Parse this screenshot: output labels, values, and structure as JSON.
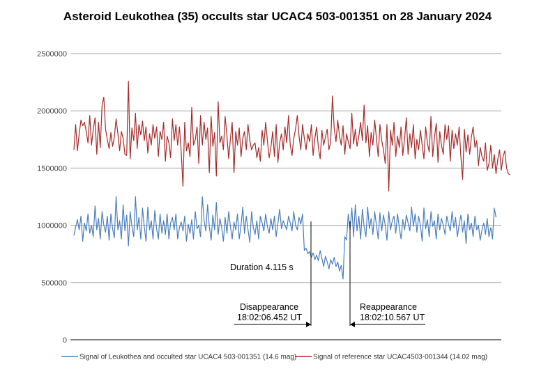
{
  "chart_data": {
    "type": "line",
    "title": "Asteroid Leukothea (35) occults star UCAC4 503-001351 on 28 January 2024",
    "xlabel": "",
    "ylabel": "",
    "ylim": [
      0,
      2500000
    ],
    "yticks": [
      0,
      500000,
      1000000,
      1500000,
      2000000,
      2500000
    ],
    "ytick_labels": [
      "0",
      "500000",
      "1000000",
      "1500000",
      "2000000",
      "2500000"
    ],
    "grid": true,
    "legend_position": "bottom",
    "x_count": 244,
    "series": [
      {
        "name": "Signal of Leukothea and occulted star UCAC4 503-001351 (14.6 mag)",
        "color": "#4a7ebb",
        "values": [
          910000,
          985000,
          1050000,
          960000,
          1080000,
          860000,
          1020000,
          950000,
          1100000,
          930000,
          1000000,
          900000,
          1170000,
          960000,
          1060000,
          880000,
          1120000,
          1000000,
          940000,
          1080000,
          870000,
          1100000,
          970000,
          890000,
          1250000,
          960000,
          1040000,
          880000,
          1180000,
          950000,
          1090000,
          820000,
          1120000,
          990000,
          900000,
          1250000,
          960000,
          1070000,
          880000,
          1150000,
          990000,
          860000,
          1160000,
          960000,
          1040000,
          880000,
          1130000,
          970000,
          880000,
          1100000,
          930000,
          1040000,
          920000,
          1100000,
          880000,
          1020000,
          1070000,
          960000,
          1100000,
          880000,
          980000,
          1030000,
          950000,
          1080000,
          860000,
          1010000,
          930000,
          1050000,
          880000,
          1120000,
          970000,
          1000000,
          900000,
          1250000,
          1040000,
          950000,
          1180000,
          990000,
          870000,
          1090000,
          960000,
          1200000,
          920000,
          1060000,
          980000,
          860000,
          1070000,
          930000,
          1120000,
          990000,
          880000,
          1030000,
          960000,
          1100000,
          880000,
          1000000,
          1160000,
          930000,
          1080000,
          960000,
          850000,
          1120000,
          980000,
          920000,
          1040000,
          880000,
          1080000,
          1020000,
          950000,
          1100000,
          990000,
          930000,
          1060000,
          960000,
          1080000,
          900000,
          1020000,
          1140000,
          970000,
          1040000,
          1000000,
          960000,
          1080000,
          1020000,
          950000,
          1120000,
          1000000,
          960000,
          1070000,
          1010000,
          1100000,
          780000,
          800000,
          750000,
          770000,
          720000,
          760000,
          700000,
          740000,
          690000,
          780000,
          710000,
          640000,
          730000,
          680000,
          620000,
          700000,
          660000,
          720000,
          640000,
          680000,
          600000,
          650000,
          530000,
          900000,
          870000,
          1100000,
          960000,
          1150000,
          900000,
          1180000,
          950000,
          1080000,
          880000,
          1140000,
          990000,
          900000,
          1160000,
          970000,
          1060000,
          920000,
          1120000,
          1000000,
          880000,
          1110000,
          950000,
          1090000,
          1000000,
          870000,
          1120000,
          960000,
          1040000,
          1080000,
          930000,
          1100000,
          980000,
          880000,
          1050000,
          960000,
          1090000,
          1020000,
          950000,
          1160000,
          990000,
          1100000,
          940000,
          1080000,
          1000000,
          860000,
          1150000,
          970000,
          1050000,
          900000,
          1120000,
          990000,
          1040000,
          880000,
          1100000,
          960000,
          1060000,
          1000000,
          920000,
          1080000,
          1010000,
          950000,
          1120000,
          980000,
          1070000,
          900000,
          1000000,
          1090000,
          940000,
          1040000,
          840000,
          1100000,
          960000,
          1020000,
          900000,
          1080000,
          960000,
          1000000,
          870000,
          960000,
          1020000,
          920000,
          1060000,
          900000,
          980000,
          880000,
          1150000,
          1070000
        ]
      },
      {
        "name": "Signal of reference star UCAC4503-001344 (14.02 mag)",
        "color": "#a52a2a",
        "values": [
          1660000,
          1880000,
          1650000,
          1800000,
          1920000,
          1870000,
          1900000,
          1820000,
          1720000,
          1960000,
          1700000,
          1830000,
          1940000,
          1620000,
          1900000,
          1680000,
          2050000,
          2120000,
          1840000,
          1750000,
          1670000,
          1810000,
          1690000,
          1770000,
          1930000,
          1800000,
          1650000,
          1820000,
          1760000,
          1620000,
          1610000,
          2260000,
          1580000,
          1850000,
          1740000,
          1980000,
          1670000,
          1880000,
          1790000,
          1910000,
          1740000,
          1860000,
          1630000,
          1800000,
          1700000,
          1880000,
          1760000,
          1860000,
          1600000,
          1820000,
          1750000,
          1900000,
          1560000,
          1780000,
          1720000,
          1590000,
          1930000,
          1740000,
          1880000,
          1700000,
          1860000,
          1640000,
          1340000,
          1900000,
          1650000,
          1720000,
          1600000,
          2030000,
          1700000,
          1750000,
          1860000,
          1540000,
          1960000,
          1700000,
          1900000,
          1750000,
          1850000,
          1460000,
          1950000,
          1690000,
          1810000,
          1430000,
          2080000,
          1720000,
          1780000,
          1660000,
          1950000,
          1780000,
          1580000,
          1760000,
          1900000,
          1460000,
          1820000,
          1700000,
          1850000,
          1600000,
          1760000,
          1820000,
          1660000,
          1880000,
          1740000,
          1660000,
          1700000,
          1720000,
          1590000,
          1680000,
          1560000,
          1830000,
          1700000,
          1900000,
          1740000,
          1590000,
          1680000,
          1820000,
          1600000,
          1880000,
          1550000,
          1720000,
          1800000,
          1660000,
          1860000,
          1720000,
          1960000,
          1700000,
          1610000,
          1760000,
          1840000,
          1960000,
          1780000,
          1660000,
          1880000,
          1760000,
          1660000,
          1800000,
          1730000,
          1880000,
          1610000,
          1760000,
          1860000,
          1680000,
          1580000,
          1830000,
          1700000,
          1770000,
          1840000,
          1660000,
          1730000,
          2130000,
          1850000,
          1730000,
          1920000,
          1780000,
          1700000,
          1870000,
          1620000,
          1800000,
          1730000,
          1670000,
          1980000,
          1710000,
          1840000,
          1690000,
          1780000,
          1900000,
          1740000,
          2050000,
          1720000,
          1870000,
          1600000,
          1810000,
          1700000,
          1920000,
          1760000,
          1600000,
          1880000,
          1740000,
          1660000,
          1540000,
          1880000,
          1300000,
          1830000,
          1700000,
          1900000,
          1600000,
          1780000,
          1680000,
          1860000,
          1610000,
          1760000,
          1940000,
          1620000,
          1800000,
          1680000,
          1880000,
          1580000,
          1750000,
          1660000,
          1830000,
          1700000,
          1580000,
          1860000,
          1720000,
          1640000,
          1950000,
          1600000,
          1770000,
          1890000,
          1550000,
          1820000,
          1700000,
          1620000,
          1880000,
          1750000,
          1870000,
          1560000,
          1830000,
          1670000,
          1800000,
          1700000,
          1860000,
          1600000,
          1400000,
          1840000,
          1640000,
          1790000,
          1620000,
          1770000,
          1860000,
          1680000,
          1740000,
          1520000,
          1680000,
          1600000,
          1560000,
          1720000,
          1480000,
          1540000,
          1700000,
          1500000,
          1620000,
          1450000,
          1580000,
          1660000,
          1480000,
          1600000,
          1650000,
          1500000,
          1450000,
          1440000
        ]
      }
    ],
    "annotations": [
      {
        "label": "duration",
        "text": "Duration 4.115 s"
      },
      {
        "label": "disappearance",
        "text": "Disappearance",
        "time": "18:02:06.452 UT"
      },
      {
        "label": "reappearance",
        "text": "Reappearance",
        "time": "18:02:10.567 UT"
      }
    ],
    "legend": [
      "Signal of Leukothea and occulted star UCAC4 503-001351 (14.6 mag)",
      "Signal of reference star UCAC4503-001344 (14.02 mag)"
    ]
  }
}
